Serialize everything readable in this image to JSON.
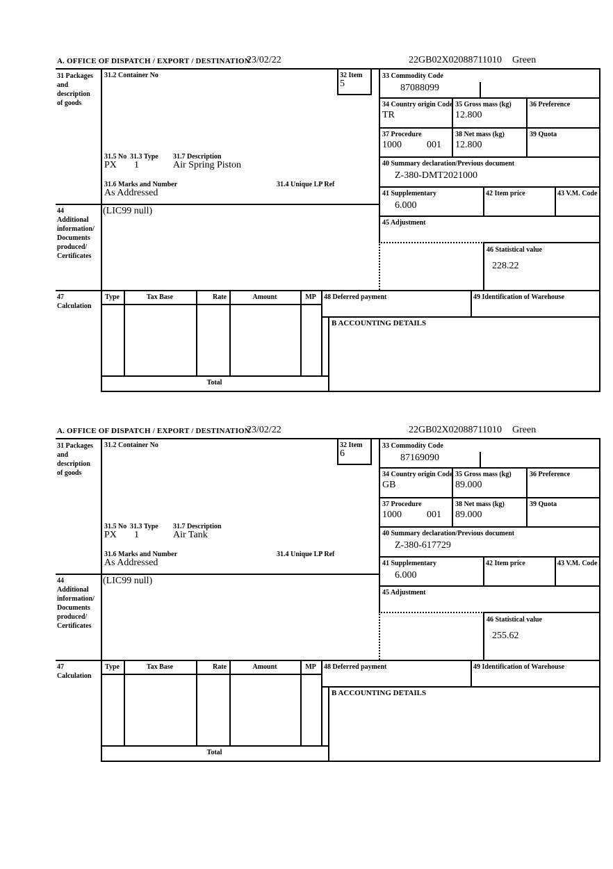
{
  "labels": {
    "header_a": "A.  OFFICE OF DISPATCH / EXPORT / DESTINATION",
    "box31": "31 Packages\nand\ndescription\nof goods",
    "box31_2": "31.2 Container No",
    "box32": "32 Item",
    "box33": "33 Commodity Code",
    "box34": "34 Country origin Code",
    "box35": "35 Gross mass (kg)",
    "box36": "36 Preference",
    "box37": "37 Procedure",
    "box38": "38 Net mass (kg)",
    "box39": "39 Quota",
    "box31_5": "31.5 No",
    "box31_3": "31.3 Type",
    "box31_7": "31.7 Description",
    "box31_6": "31.6 Marks and Number",
    "box31_4": "31.4 Unique LP Ref",
    "box40": "40 Summary declaration/Previous document",
    "box41": "41 Supplementary",
    "box42": "42 Item price",
    "box43": "43 V.M. Code",
    "box44": "44\nAdditional\ninformation/\nDocuments\nproduced/\nCertificates",
    "box45": "45 Adjustment",
    "box46": "46 Statistical value",
    "box47": "47\nCalculation",
    "col_type": "Type",
    "col_tax_base": "Tax Base",
    "col_rate": "Rate",
    "col_amount": "Amount",
    "col_mp": "MP",
    "box48": "48 Deferred payment",
    "box49": "49 Identification of Warehouse",
    "box_b": "B ACCOUNTING DETAILS",
    "total": "Total"
  },
  "sections": [
    {
      "date": "23/02/22",
      "mrn": "22GB02X02088711010",
      "routing": "Green",
      "item_no": "5",
      "commodity_code": "87088099",
      "origin_country": "TR",
      "gross_mass": "12.800",
      "procedure": "1000",
      "procedure_suffix": "001",
      "net_mass": "12.800",
      "previous_document": "Z-380-DMT2021000",
      "supplementary": "6.000",
      "statistical_value": "228.22",
      "package_no": "PX",
      "package_type": "1",
      "description": "Air Spring Piston",
      "marks": "As Addressed",
      "additional_info": "(LIC99 null)"
    },
    {
      "date": "23/02/22",
      "mrn": "22GB02X02088711010",
      "routing": "Green",
      "item_no": "6",
      "commodity_code": "87169090",
      "origin_country": "GB",
      "gross_mass": "89.000",
      "procedure": "1000",
      "procedure_suffix": "001",
      "net_mass": "89.000",
      "previous_document": "Z-380-617729",
      "supplementary": "6.000",
      "statistical_value": "255.62",
      "package_no": "PX",
      "package_type": "1",
      "description": "Air Tank",
      "marks": "As Addressed",
      "additional_info": "(LIC99 null)"
    }
  ]
}
